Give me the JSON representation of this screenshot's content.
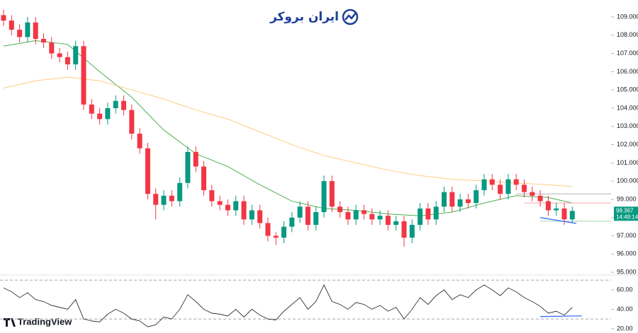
{
  "logo": "ایران بروکر",
  "watermark": "TradingView",
  "chart_data": {
    "type": "candlestick",
    "open": [
      109.1,
      108.8,
      108.3,
      107.9,
      108.7,
      107.8,
      107.6,
      107.0,
      106.8,
      106.4,
      107.4,
      104.2,
      103.7,
      103.4,
      104.0,
      104.4,
      103.9,
      102.6,
      101.8,
      99.3,
      98.7,
      99.2,
      98.9,
      99.9,
      101.6,
      100.8,
      99.5,
      98.9,
      98.7,
      98.4,
      98.9,
      97.9,
      98.4,
      97.7,
      97.0,
      96.9,
      97.5,
      98.0,
      98.6,
      97.6,
      98.3,
      100.0,
      98.6,
      98.3,
      97.9,
      98.4,
      98.2,
      97.9,
      98.1,
      97.6,
      97.8,
      96.9,
      97.6,
      98.5,
      97.9,
      98.6,
      99.4,
      98.6,
      99.0,
      98.8,
      99.5,
      100.1,
      99.8,
      99.3,
      100.1,
      99.8,
      99.4,
      99.2,
      98.9,
      98.4,
      98.5,
      97.9
    ],
    "high": [
      109.4,
      109.1,
      108.6,
      109.0,
      109.0,
      108.1,
      107.9,
      107.3,
      107.1,
      107.7,
      107.7,
      104.5,
      104.0,
      104.3,
      104.7,
      104.7,
      104.2,
      102.9,
      102.1,
      99.6,
      99.5,
      99.5,
      100.2,
      101.9,
      101.9,
      101.1,
      99.8,
      99.2,
      99.0,
      99.2,
      99.2,
      98.7,
      98.7,
      98.0,
      97.2,
      97.8,
      98.3,
      98.9,
      98.9,
      98.6,
      100.3,
      100.3,
      98.9,
      98.6,
      98.7,
      98.7,
      98.5,
      98.4,
      98.4,
      98.1,
      98.1,
      97.9,
      98.8,
      98.8,
      98.9,
      99.7,
      99.7,
      99.3,
      99.3,
      99.8,
      100.4,
      100.4,
      100.1,
      100.4,
      100.4,
      100.1,
      99.7,
      99.5,
      99.2,
      98.8,
      98.8,
      98.6
    ],
    "low": [
      108.5,
      108.0,
      107.6,
      107.6,
      107.5,
      107.3,
      106.7,
      106.5,
      106.1,
      106.1,
      103.9,
      103.4,
      103.1,
      103.1,
      103.7,
      103.6,
      102.3,
      101.5,
      99.0,
      97.9,
      98.4,
      98.6,
      98.6,
      99.6,
      100.5,
      99.2,
      98.6,
      98.4,
      98.1,
      98.1,
      97.6,
      97.6,
      97.4,
      96.7,
      96.5,
      96.6,
      97.2,
      97.7,
      97.3,
      97.3,
      98.0,
      98.3,
      98.0,
      97.6,
      97.6,
      97.9,
      97.6,
      97.6,
      97.3,
      97.3,
      96.4,
      96.6,
      97.3,
      97.6,
      97.6,
      98.3,
      98.3,
      98.3,
      98.5,
      98.5,
      99.2,
      99.5,
      99.0,
      99.0,
      99.5,
      99.1,
      98.9,
      98.6,
      98.1,
      98.1,
      97.6,
      97.7
    ],
    "close": [
      108.8,
      108.3,
      107.9,
      108.7,
      107.8,
      107.6,
      107.0,
      106.8,
      106.4,
      107.4,
      104.2,
      103.7,
      103.4,
      104.0,
      104.4,
      103.9,
      102.6,
      101.8,
      99.3,
      98.7,
      99.2,
      98.9,
      99.9,
      101.6,
      100.8,
      99.5,
      98.9,
      98.7,
      98.4,
      98.9,
      97.9,
      98.4,
      97.7,
      97.0,
      96.9,
      97.5,
      98.0,
      98.6,
      97.6,
      98.3,
      100.0,
      98.6,
      98.3,
      97.9,
      98.4,
      98.2,
      97.9,
      98.1,
      97.6,
      97.8,
      96.9,
      97.6,
      98.5,
      97.9,
      98.6,
      99.4,
      98.6,
      99.0,
      98.8,
      99.5,
      100.1,
      99.8,
      99.3,
      100.1,
      99.8,
      99.4,
      99.2,
      98.9,
      98.4,
      98.5,
      97.9,
      98.367
    ],
    "up_color": "#089981",
    "down_color": "#f23645",
    "ylim": [
      94.89,
      109.93
    ],
    "yticks": [
      {
        "value": 95,
        "label": "95.000"
      },
      {
        "value": 96,
        "label": "96.000"
      },
      {
        "value": 97,
        "label": "97.000"
      },
      {
        "value": 98,
        "label": "98.000"
      },
      {
        "value": 99,
        "label": "99.000"
      },
      {
        "value": 100,
        "label": "100.000"
      },
      {
        "value": 101,
        "label": "101.000"
      },
      {
        "value": 102,
        "label": "102.000"
      },
      {
        "value": 103,
        "label": "103.000"
      },
      {
        "value": 104,
        "label": "104.000"
      },
      {
        "value": 105,
        "label": "105.000"
      },
      {
        "value": 106,
        "label": "106.000"
      },
      {
        "value": 107,
        "label": "107.000"
      },
      {
        "value": 108,
        "label": "108.000"
      },
      {
        "value": 109,
        "label": "109.000"
      }
    ],
    "moving_averages": [
      {
        "color": "#4caf50",
        "x": [
          0,
          4,
          8,
          12,
          16,
          20,
          24,
          28,
          32,
          36,
          40,
          44,
          48,
          52,
          56,
          60,
          64,
          68,
          71
        ],
        "values": [
          107.4,
          107.7,
          107.5,
          106.0,
          104.6,
          102.8,
          101.5,
          100.8,
          99.8,
          98.9,
          98.5,
          98.4,
          98.2,
          98.1,
          98.3,
          98.8,
          99.2,
          99.1,
          98.8
        ]
      },
      {
        "color": "#ffcc80",
        "x": [
          0,
          4,
          8,
          12,
          16,
          20,
          24,
          28,
          32,
          36,
          40,
          44,
          48,
          52,
          56,
          60,
          64,
          68,
          71
        ],
        "values": [
          105.1,
          105.5,
          105.7,
          105.5,
          105.0,
          104.5,
          103.9,
          103.4,
          102.7,
          102.0,
          101.4,
          101.0,
          100.6,
          100.3,
          100.1,
          100.0,
          99.9,
          99.8,
          99.7
        ]
      }
    ],
    "levels": [
      {
        "value": 99.3,
        "from": 64,
        "color": "#b2b5be"
      },
      {
        "value": 98.8,
        "from": 65,
        "color": "#f7a9a9"
      },
      {
        "value": 97.8,
        "from": 67,
        "color": "#a5d6a7"
      }
    ],
    "trendline": {
      "x": [
        67,
        71.5
      ],
      "values": [
        98.0,
        97.68
      ],
      "color": "#2962ff"
    },
    "last_price": 98.367,
    "countdown": "14:49:14",
    "rsi": {
      "values": [
        62,
        58,
        52,
        57,
        50,
        48,
        44,
        42,
        40,
        50,
        30,
        28,
        27,
        35,
        40,
        36,
        30,
        28,
        22,
        24,
        32,
        30,
        40,
        55,
        48,
        40,
        36,
        35,
        33,
        40,
        32,
        40,
        34,
        30,
        29,
        38,
        45,
        52,
        40,
        48,
        65,
        48,
        45,
        40,
        47,
        45,
        40,
        44,
        38,
        42,
        30,
        40,
        52,
        45,
        54,
        60,
        50,
        55,
        52,
        60,
        65,
        60,
        54,
        62,
        58,
        52,
        48,
        43,
        36,
        38,
        34,
        42
      ],
      "color": "#131722",
      "ylim": [
        15.6,
        74.5
      ],
      "yticks": [
        {
          "value": 20,
          "label": "20.00"
        },
        {
          "value": 40,
          "label": "40.00"
        },
        {
          "value": 60,
          "label": "60.00"
        }
      ],
      "bands": [
        70,
        30
      ],
      "trendline": {
        "x": [
          67,
          72.2
        ],
        "values": [
          32.5,
          33.2
        ],
        "color": "#2962ff"
      }
    }
  }
}
